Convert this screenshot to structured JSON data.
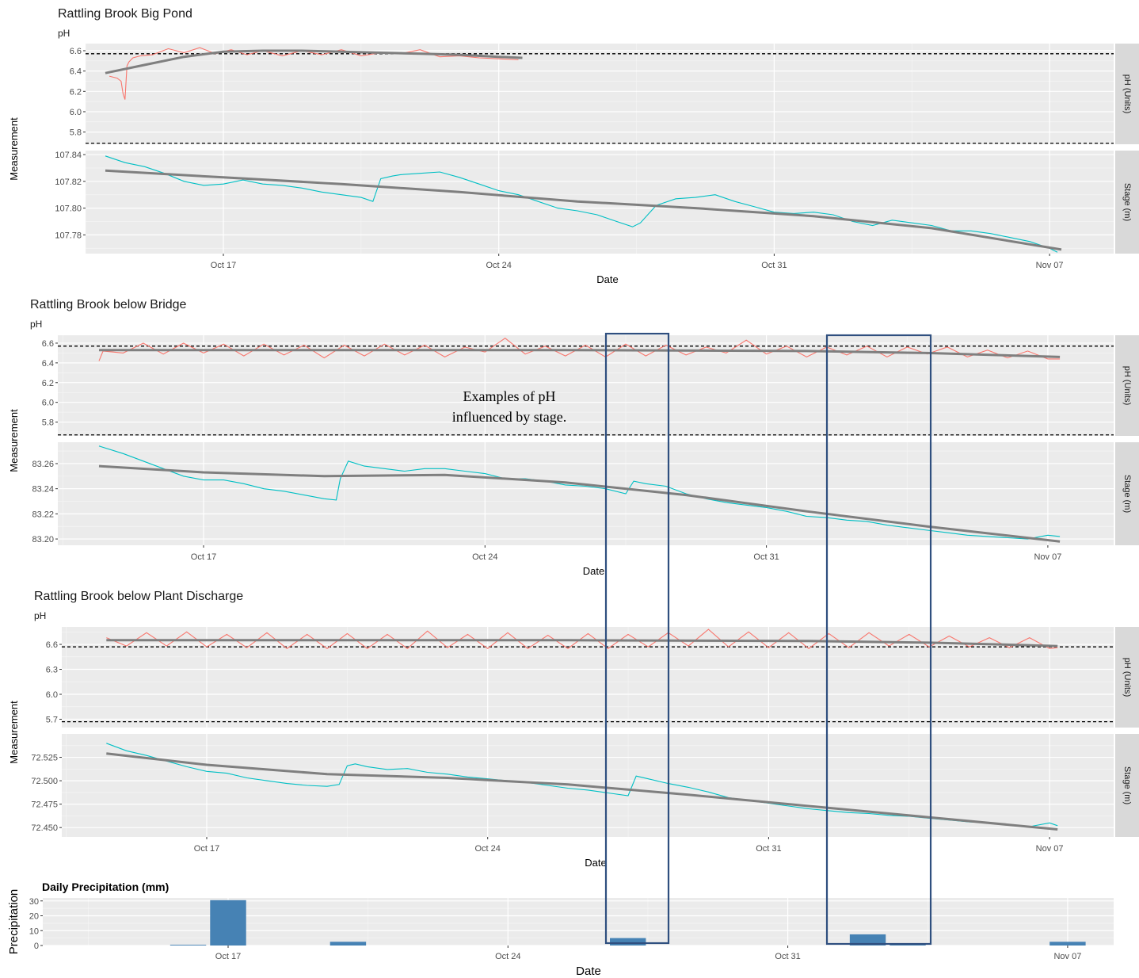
{
  "chart_data": [
    {
      "type": "line",
      "title": "Rattling Brook Big Pond",
      "subtitle": "pH",
      "xlabel": "Date",
      "ylabel": "Measurement",
      "x_ticks": [
        "Oct 17",
        "Oct 24",
        "Oct 31",
        "Nov 07"
      ],
      "panels": [
        {
          "strip": "pH (Units)",
          "ylim": [
            5.68,
            6.67
          ],
          "y_ticks": [
            "5.8",
            "6.0",
            "6.2",
            "6.4",
            "6.6"
          ],
          "y_tick_values": [
            5.8,
            6.0,
            6.2,
            6.4,
            6.6
          ],
          "reference_lines": [
            6.57,
            5.69
          ],
          "series": {
            "x_days": [
              -2.9,
              -2.7,
              -2.6,
              -2.55,
              -2.5,
              -2.45,
              -2.4,
              -2.3,
              -2.1,
              -1.8,
              -1.4,
              -1.0,
              -0.6,
              -0.2,
              0.2,
              0.6,
              1.0,
              1.5,
              2.0,
              2.5,
              3.0,
              3.5,
              4.0,
              4.5,
              5.0,
              5.5,
              6.0,
              6.5,
              7.0,
              7.5
            ],
            "values": [
              6.35,
              6.33,
              6.3,
              6.18,
              6.12,
              6.45,
              6.49,
              6.53,
              6.55,
              6.56,
              6.62,
              6.58,
              6.63,
              6.57,
              6.61,
              6.56,
              6.6,
              6.55,
              6.6,
              6.56,
              6.61,
              6.55,
              6.58,
              6.57,
              6.61,
              6.54,
              6.55,
              6.53,
              6.52,
              6.51
            ],
            "color": "#F8766D"
          },
          "trend": {
            "x_days": [
              -3.0,
              -2.0,
              -1.0,
              0.0,
              1.0,
              2.0,
              3.0,
              4.0,
              5.0,
              6.0,
              7.0,
              7.6
            ],
            "values": [
              6.38,
              6.46,
              6.54,
              6.59,
              6.6,
              6.6,
              6.59,
              6.58,
              6.57,
              6.56,
              6.54,
              6.53
            ]
          }
        },
        {
          "strip": "Stage (m)",
          "ylim": [
            107.766,
            107.843
          ],
          "y_ticks": [
            "107.78",
            "107.80",
            "107.82",
            "107.84"
          ],
          "y_tick_values": [
            107.78,
            107.8,
            107.82,
            107.84
          ],
          "series": {
            "x_days": [
              -3.0,
              -2.5,
              -2.0,
              -1.5,
              -1.0,
              -0.5,
              0.0,
              0.5,
              1.0,
              1.5,
              2.0,
              2.5,
              3.0,
              3.5,
              3.8,
              4.0,
              4.3,
              4.5,
              5.0,
              5.5,
              6.0,
              6.5,
              7.0,
              7.5,
              8.0,
              8.5,
              9.0,
              9.5,
              10.0,
              10.4,
              10.6,
              11.0,
              11.5,
              12.0,
              12.5,
              13.0,
              13.5,
              14.0,
              14.5,
              15.0,
              15.5,
              16.0,
              16.5,
              17.0,
              17.5,
              18.0,
              18.5,
              19.0,
              19.5,
              20.0,
              20.5,
              21.0,
              21.2
            ],
            "values": [
              107.839,
              107.834,
              107.831,
              107.826,
              107.82,
              107.817,
              107.818,
              107.821,
              107.818,
              107.817,
              107.815,
              107.812,
              107.81,
              107.808,
              107.805,
              107.822,
              107.824,
              107.825,
              107.826,
              107.827,
              107.823,
              107.818,
              107.813,
              107.81,
              107.805,
              107.8,
              107.798,
              107.795,
              107.79,
              107.786,
              107.789,
              107.802,
              107.807,
              107.808,
              107.81,
              107.805,
              107.801,
              107.797,
              107.796,
              107.797,
              107.795,
              107.79,
              107.787,
              107.791,
              107.789,
              107.787,
              107.783,
              107.783,
              107.781,
              107.778,
              107.775,
              107.77,
              107.767
            ],
            "color": "#00BFC4"
          },
          "trend": {
            "x_days": [
              -3.0,
              0.0,
              3.0,
              6.0,
              9.0,
              12.0,
              15.0,
              18.0,
              21.3
            ],
            "values": [
              107.828,
              107.823,
              107.818,
              107.812,
              107.805,
              107.8,
              107.794,
              107.785,
              107.769
            ]
          }
        }
      ]
    },
    {
      "type": "line",
      "title": "Rattling Brook below Bridge",
      "subtitle": "pH",
      "xlabel": "Date",
      "ylabel": "Measurement",
      "x_ticks": [
        "Oct 17",
        "Oct 24",
        "Oct 31",
        "Nov 07"
      ],
      "panels": [
        {
          "strip": "pH (Units)",
          "ylim": [
            5.66,
            6.68
          ],
          "y_ticks": [
            "5.8",
            "6.0",
            "6.2",
            "6.4",
            "6.6"
          ],
          "y_tick_values": [
            5.8,
            6.0,
            6.2,
            6.4,
            6.6
          ],
          "reference_lines": [
            6.57,
            5.67
          ],
          "series": {
            "x_days": [
              -2.6,
              -2.5,
              -2.0,
              -1.5,
              -1.0,
              -0.5,
              0.0,
              0.5,
              1.0,
              1.5,
              2.0,
              2.5,
              3.0,
              3.5,
              4.0,
              4.5,
              5.0,
              5.5,
              6.0,
              6.5,
              7.0,
              7.5,
              8.0,
              8.5,
              9.0,
              9.5,
              10.0,
              10.5,
              11.0,
              11.5,
              12.0,
              12.5,
              13.0,
              13.5,
              14.0,
              14.5,
              15.0,
              15.5,
              16.0,
              16.5,
              17.0,
              17.5,
              18.0,
              18.5,
              19.0,
              19.5,
              20.0,
              20.5,
              21.0,
              21.3
            ],
            "values": [
              6.42,
              6.52,
              6.5,
              6.6,
              6.49,
              6.6,
              6.5,
              6.59,
              6.47,
              6.59,
              6.48,
              6.58,
              6.45,
              6.58,
              6.47,
              6.59,
              6.48,
              6.58,
              6.46,
              6.56,
              6.51,
              6.65,
              6.49,
              6.57,
              6.47,
              6.58,
              6.46,
              6.59,
              6.47,
              6.58,
              6.48,
              6.56,
              6.5,
              6.63,
              6.49,
              6.57,
              6.46,
              6.56,
              6.48,
              6.57,
              6.46,
              6.56,
              6.49,
              6.56,
              6.46,
              6.53,
              6.45,
              6.52,
              6.44,
              6.44
            ],
            "color": "#F8766D"
          },
          "trend": {
            "x_days": [
              -2.6,
              3.0,
              9.0,
              15.0,
              18.0,
              21.3
            ],
            "values": [
              6.53,
              6.53,
              6.53,
              6.52,
              6.5,
              6.46
            ]
          }
        },
        {
          "strip": "Stage (m)",
          "ylim": [
            83.195,
            83.277
          ],
          "y_ticks": [
            "83.20",
            "83.22",
            "83.24",
            "83.26"
          ],
          "y_tick_values": [
            83.2,
            83.22,
            83.24,
            83.26
          ],
          "series": {
            "x_days": [
              -2.6,
              -2.0,
              -1.5,
              -1.0,
              -0.5,
              0.0,
              0.5,
              1.0,
              1.5,
              2.0,
              2.5,
              3.0,
              3.3,
              3.4,
              3.6,
              4.0,
              4.5,
              5.0,
              5.5,
              6.0,
              6.5,
              7.0,
              7.5,
              8.0,
              8.5,
              9.0,
              9.5,
              10.0,
              10.5,
              10.7,
              11.0,
              11.5,
              12.0,
              12.5,
              13.0,
              13.5,
              14.0,
              14.5,
              15.0,
              15.5,
              16.0,
              16.5,
              17.0,
              17.5,
              18.0,
              18.5,
              19.0,
              19.5,
              20.0,
              20.5,
              21.0,
              21.3
            ],
            "values": [
              83.274,
              83.268,
              83.262,
              83.256,
              83.25,
              83.247,
              83.247,
              83.244,
              83.24,
              83.238,
              83.235,
              83.232,
              83.231,
              83.248,
              83.262,
              83.258,
              83.256,
              83.254,
              83.256,
              83.256,
              83.254,
              83.252,
              83.248,
              83.248,
              83.246,
              83.243,
              83.242,
              83.24,
              83.236,
              83.246,
              83.244,
              83.242,
              83.236,
              83.232,
              83.229,
              83.227,
              83.225,
              83.222,
              83.218,
              83.217,
              83.215,
              83.214,
              83.211,
              83.209,
              83.207,
              83.205,
              83.203,
              83.202,
              83.201,
              83.2,
              83.203,
              83.202
            ],
            "color": "#00BFC4"
          },
          "trend": {
            "x_days": [
              -2.6,
              0.0,
              3.0,
              6.0,
              9.0,
              12.0,
              15.0,
              18.0,
              21.3
            ],
            "values": [
              83.258,
              83.253,
              83.25,
              83.251,
              83.245,
              83.235,
              83.222,
              83.21,
              83.198
            ]
          }
        }
      ]
    },
    {
      "type": "line",
      "title": "Rattling Brook below Plant Discharge",
      "subtitle": "pH",
      "xlabel": "Date",
      "ylabel": "Measurement",
      "x_ticks": [
        "Oct 17",
        "Oct 24",
        "Oct 31",
        "Nov 07"
      ],
      "panels": [
        {
          "strip": "pH (Units)",
          "ylim": [
            5.6,
            6.81
          ],
          "y_ticks": [
            "5.7",
            "6.0",
            "6.3",
            "6.6"
          ],
          "y_tick_values": [
            5.7,
            6.0,
            6.3,
            6.6
          ],
          "reference_lines": [
            6.57,
            5.67
          ],
          "series": {
            "x_days": [
              -2.5,
              -2.0,
              -1.5,
              -1.0,
              -0.5,
              0.0,
              0.5,
              1.0,
              1.5,
              2.0,
              2.5,
              3.0,
              3.5,
              4.0,
              4.5,
              5.0,
              5.5,
              6.0,
              6.5,
              7.0,
              7.5,
              8.0,
              8.5,
              9.0,
              9.5,
              10.0,
              10.5,
              11.0,
              11.5,
              12.0,
              12.5,
              13.0,
              13.5,
              14.0,
              14.5,
              15.0,
              15.5,
              16.0,
              16.5,
              17.0,
              17.5,
              18.0,
              18.5,
              19.0,
              19.5,
              20.0,
              20.5,
              21.0,
              21.2
            ],
            "values": [
              6.68,
              6.58,
              6.74,
              6.58,
              6.75,
              6.57,
              6.72,
              6.56,
              6.74,
              6.55,
              6.72,
              6.55,
              6.73,
              6.55,
              6.72,
              6.55,
              6.76,
              6.56,
              6.72,
              6.55,
              6.74,
              6.55,
              6.71,
              6.55,
              6.73,
              6.55,
              6.72,
              6.57,
              6.74,
              6.58,
              6.78,
              6.57,
              6.75,
              6.56,
              6.74,
              6.55,
              6.73,
              6.56,
              6.74,
              6.58,
              6.72,
              6.57,
              6.7,
              6.57,
              6.68,
              6.56,
              6.68,
              6.55,
              6.56
            ],
            "color": "#F8766D"
          },
          "trend": {
            "x_days": [
              -2.5,
              3.0,
              9.0,
              15.0,
              18.0,
              21.2
            ],
            "values": [
              6.65,
              6.65,
              6.65,
              6.64,
              6.62,
              6.58
            ]
          }
        },
        {
          "strip": "Stage (m)",
          "ylim": [
            72.44,
            72.55
          ],
          "y_ticks": [
            "72.450",
            "72.475",
            "72.500",
            "72.525"
          ],
          "y_tick_values": [
            72.45,
            72.475,
            72.5,
            72.525
          ],
          "series": {
            "x_days": [
              -2.5,
              -2.0,
              -1.5,
              -1.0,
              -0.5,
              0.0,
              0.5,
              1.0,
              1.5,
              2.0,
              2.5,
              3.0,
              3.3,
              3.5,
              3.7,
              4.0,
              4.5,
              5.0,
              5.5,
              6.0,
              6.5,
              7.0,
              7.5,
              8.0,
              8.5,
              9.0,
              9.5,
              10.0,
              10.5,
              10.7,
              11.0,
              11.5,
              12.0,
              12.5,
              13.0,
              13.5,
              14.0,
              14.5,
              15.0,
              15.5,
              16.0,
              16.5,
              17.0,
              17.5,
              18.0,
              18.5,
              19.0,
              19.5,
              20.0,
              20.5,
              21.0,
              21.2
            ],
            "values": [
              72.54,
              72.532,
              72.527,
              72.521,
              72.515,
              72.51,
              72.508,
              72.503,
              72.5,
              72.497,
              72.495,
              72.494,
              72.496,
              72.516,
              72.518,
              72.515,
              72.512,
              72.513,
              72.509,
              72.507,
              72.504,
              72.502,
              72.5,
              72.498,
              72.495,
              72.492,
              72.49,
              72.487,
              72.484,
              72.505,
              72.502,
              72.497,
              72.493,
              72.488,
              72.482,
              72.479,
              72.476,
              72.473,
              72.47,
              72.468,
              72.466,
              72.465,
              72.463,
              72.462,
              72.46,
              72.458,
              72.456,
              72.455,
              72.453,
              72.451,
              72.455,
              72.452
            ],
            "color": "#00BFC4"
          },
          "trend": {
            "x_days": [
              -2.5,
              0.0,
              3.0,
              6.0,
              9.0,
              12.0,
              15.0,
              18.0,
              21.2
            ],
            "values": [
              72.529,
              72.517,
              72.507,
              72.503,
              72.496,
              72.485,
              72.473,
              72.461,
              72.448
            ]
          }
        }
      ]
    },
    {
      "type": "bar",
      "title": "Daily Precipitation (mm)",
      "xlabel": "Date",
      "ylabel": "Precipitation",
      "x_ticks": [
        "Oct 17",
        "Oct 24",
        "Oct 31",
        "Nov 07"
      ],
      "y_ticks": [
        "0",
        "10",
        "20",
        "30"
      ],
      "y_tick_values": [
        0,
        10,
        20,
        30
      ],
      "ylim": [
        0,
        32
      ],
      "bar_color": "#4682B4",
      "bars_day_offset": [
        -1,
        0,
        3,
        10,
        16,
        17,
        21
      ],
      "values": [
        0.5,
        30.5,
        2.5,
        5,
        7.5,
        0.8,
        2.5
      ]
    }
  ],
  "annotation": {
    "line1": "Examples of pH",
    "line2": "influenced by stage."
  }
}
